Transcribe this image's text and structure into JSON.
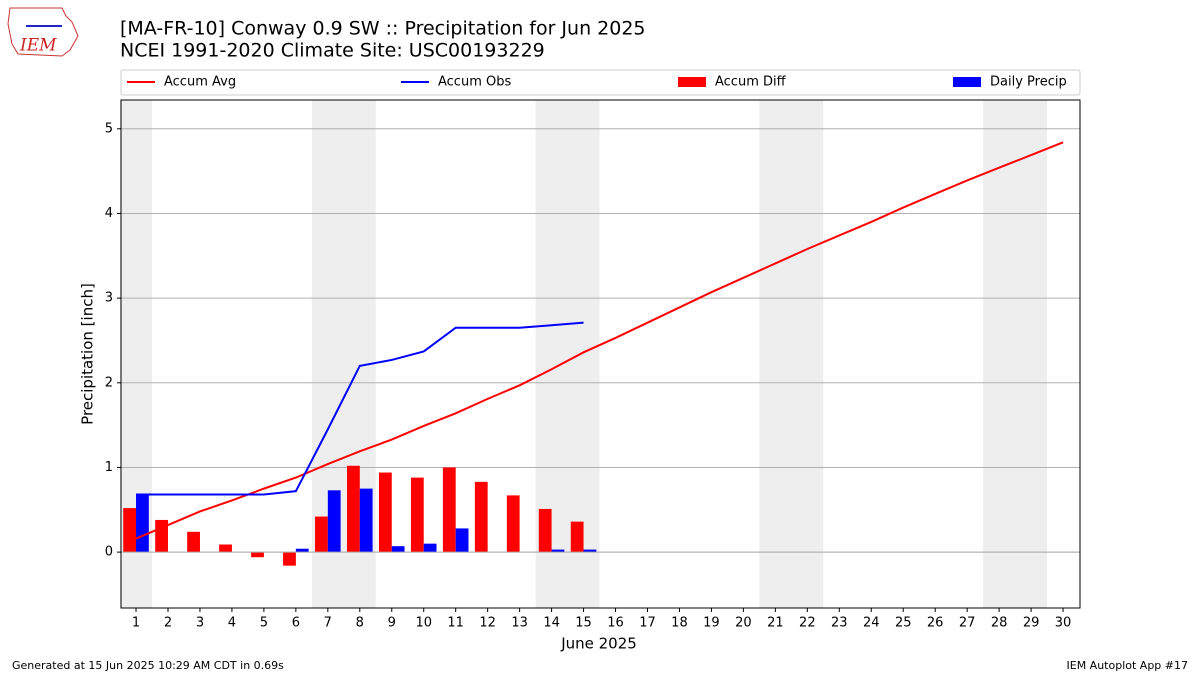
{
  "logo_text": "IEM",
  "footer_left": "Generated at 15 Jun 2025 10:29 AM CDT in 0.69s",
  "footer_right": "IEM Autoplot App #17",
  "chart_data": {
    "type": "bar",
    "title": "[MA-FR-10] Conway 0.9 SW :: Precipitation for Jun 2025",
    "subtitle": "NCEI 1991-2020 Climate Site: USC00193229",
    "x_label": "June 2025",
    "y_label": "Precipitation [inch]",
    "x": [
      1,
      2,
      3,
      4,
      5,
      6,
      7,
      8,
      9,
      10,
      11,
      12,
      13,
      14,
      15,
      16,
      17,
      18,
      19,
      20,
      21,
      22,
      23,
      24,
      25,
      26,
      27,
      28,
      29,
      30
    ],
    "xlim": [
      0.53,
      30.53
    ],
    "xticks": [
      1,
      2,
      3,
      4,
      5,
      6,
      7,
      8,
      9,
      10,
      11,
      12,
      13,
      14,
      15,
      16,
      17,
      18,
      19,
      20,
      21,
      22,
      23,
      24,
      25,
      26,
      27,
      28,
      29,
      30
    ],
    "ylim": [
      -0.66,
      5.34
    ],
    "yticks": [
      0,
      1,
      2,
      3,
      4,
      5
    ],
    "grid": true,
    "shaded_x_ranges": [
      [
        0.5,
        1.5
      ],
      [
        6.5,
        8.5
      ],
      [
        13.5,
        15.5
      ],
      [
        20.5,
        22.5
      ],
      [
        27.5,
        29.5
      ]
    ],
    "shade_color": "#eeeeee",
    "legend_position": "top",
    "series": [
      {
        "name": "Accum Avg",
        "color": "#ff0000",
        "type": "line",
        "values": [
          0.16,
          0.32,
          0.48,
          0.61,
          0.75,
          0.88,
          1.04,
          1.19,
          1.33,
          1.49,
          1.64,
          1.81,
          1.97,
          2.16,
          2.36,
          2.53,
          2.71,
          2.89,
          3.07,
          3.24,
          3.41,
          3.58,
          3.74,
          3.9,
          4.07,
          4.23,
          4.39,
          4.54,
          4.69,
          4.84
        ]
      },
      {
        "name": "Accum Obs",
        "color": "#0000ff",
        "type": "line",
        "values": [
          0.68,
          0.68,
          0.68,
          0.68,
          0.68,
          0.72,
          1.45,
          2.2,
          2.27,
          2.37,
          2.65,
          2.65,
          2.65,
          2.68,
          2.71,
          null,
          null,
          null,
          null,
          null,
          null,
          null,
          null,
          null,
          null,
          null,
          null,
          null,
          null,
          null
        ]
      },
      {
        "name": "Accum Diff",
        "color": "#ff0000",
        "type": "bar",
        "offset": -0.2,
        "values": [
          0.52,
          0.38,
          0.24,
          0.09,
          -0.06,
          -0.16,
          0.42,
          1.02,
          0.94,
          0.88,
          1.0,
          0.83,
          0.67,
          0.51,
          0.36,
          null,
          null,
          null,
          null,
          null,
          null,
          null,
          null,
          null,
          null,
          null,
          null,
          null,
          null,
          null
        ]
      },
      {
        "name": "Daily Precip",
        "color": "#0000ff",
        "type": "bar",
        "offset": 0.2,
        "values": [
          0.68,
          0,
          0,
          0,
          0,
          0.04,
          0.73,
          0.75,
          0.07,
          0.1,
          0.28,
          0,
          0,
          0.03,
          0.03,
          null,
          null,
          null,
          null,
          null,
          null,
          null,
          null,
          null,
          null,
          null,
          null,
          null,
          null,
          null
        ]
      }
    ]
  }
}
